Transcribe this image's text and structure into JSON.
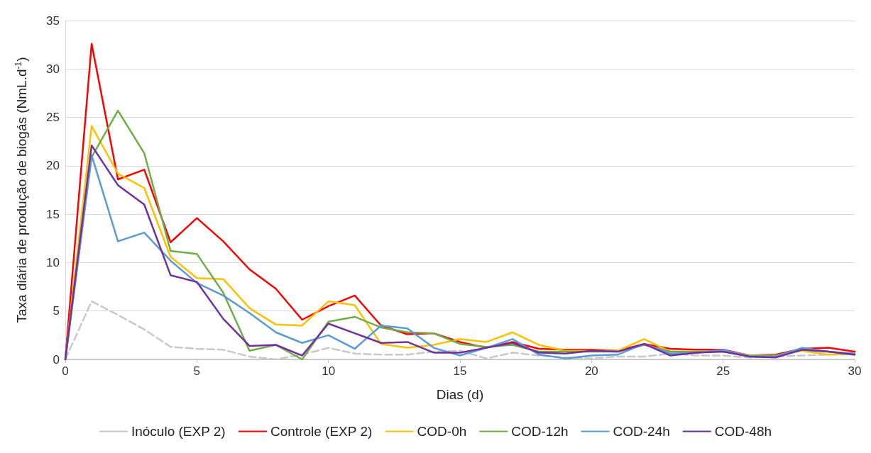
{
  "chart_data": {
    "type": "line",
    "xlabel": "Dias (d)",
    "ylabel": "Taxa diária de produção de biogás (NmL.d$^{-1}$)",
    "x": [
      0,
      1,
      2,
      3,
      4,
      5,
      6,
      7,
      8,
      9,
      10,
      11,
      12,
      13,
      14,
      15,
      16,
      17,
      18,
      19,
      20,
      21,
      22,
      23,
      24,
      25,
      26,
      27,
      28,
      29,
      30
    ],
    "xlim": [
      0,
      30
    ],
    "xticks": [
      0,
      5,
      10,
      15,
      20,
      25,
      30
    ],
    "ylim": [
      0,
      35
    ],
    "yticks": [
      0,
      5,
      10,
      15,
      20,
      25,
      30,
      35
    ],
    "grid": "y",
    "legend": "bottom",
    "marker": "none",
    "line_style": "solid",
    "series": [
      {
        "name": "Inóculo (EXP 2)",
        "color": "#c8c8c8",
        "line_style": "dashed",
        "values": [
          0,
          6.0,
          4.6,
          3.1,
          1.3,
          1.1,
          1.0,
          0.3,
          0.0,
          0.5,
          1.2,
          0.6,
          0.5,
          0.5,
          0.8,
          0.9,
          0.1,
          0.7,
          0.4,
          0.2,
          0.1,
          0.3,
          0.3,
          0.6,
          0.4,
          0.4,
          0.2,
          0.3,
          0.4,
          0.5,
          0.5
        ]
      },
      {
        "name": "Controle (EXP 2)",
        "color": "#ff0000",
        "values": [
          0,
          32.6,
          18.6,
          19.6,
          12.1,
          14.6,
          12.2,
          9.3,
          7.3,
          4.1,
          5.5,
          6.6,
          3.5,
          2.6,
          2.7,
          1.8,
          1.2,
          1.8,
          1.1,
          1.0,
          1.0,
          0.9,
          1.6,
          1.1,
          1.0,
          1.0,
          0.4,
          0.5,
          1.1,
          1.2,
          0.8
        ]
      },
      {
        "name": "COD-0h",
        "color": "#ffc000",
        "values": [
          0,
          24.1,
          19.2,
          17.7,
          10.6,
          8.4,
          8.3,
          5.3,
          3.6,
          3.5,
          6.0,
          5.6,
          1.6,
          1.2,
          1.5,
          2.1,
          1.8,
          2.8,
          1.5,
          0.9,
          0.9,
          0.9,
          2.1,
          0.8,
          0.8,
          0.9,
          0.4,
          0.4,
          0.9,
          0.5,
          0.6
        ]
      },
      {
        "name": "COD-12h",
        "color": "#70ad47",
        "values": [
          0,
          20.9,
          25.7,
          21.3,
          11.2,
          10.9,
          6.9,
          0.9,
          1.5,
          0.0,
          3.9,
          4.4,
          3.3,
          2.8,
          2.7,
          1.6,
          1.3,
          1.5,
          0.8,
          0.8,
          0.8,
          0.8,
          1.5,
          0.8,
          0.8,
          0.8,
          0.4,
          0.4,
          1.0,
          0.8,
          0.5
        ]
      },
      {
        "name": "COD-24h",
        "color": "#5b9bd5",
        "values": [
          0,
          21.1,
          12.2,
          13.1,
          10.2,
          7.9,
          6.6,
          4.8,
          2.8,
          1.7,
          2.5,
          1.1,
          3.5,
          3.2,
          1.2,
          0.4,
          1.2,
          2.1,
          0.5,
          0.1,
          0.4,
          0.5,
          1.6,
          0.6,
          0.7,
          1.0,
          0.3,
          0.3,
          1.2,
          0.8,
          0.6
        ]
      },
      {
        "name": "COD-48h",
        "color": "#7030a0",
        "values": [
          0,
          22.1,
          18.0,
          16.0,
          8.7,
          8.0,
          4.2,
          1.4,
          1.5,
          0.4,
          3.7,
          2.7,
          1.7,
          1.8,
          0.7,
          0.7,
          1.2,
          1.7,
          0.7,
          0.6,
          0.9,
          0.8,
          1.6,
          0.4,
          0.7,
          0.8,
          0.3,
          0.2,
          1.0,
          0.8,
          0.5
        ]
      }
    ]
  }
}
